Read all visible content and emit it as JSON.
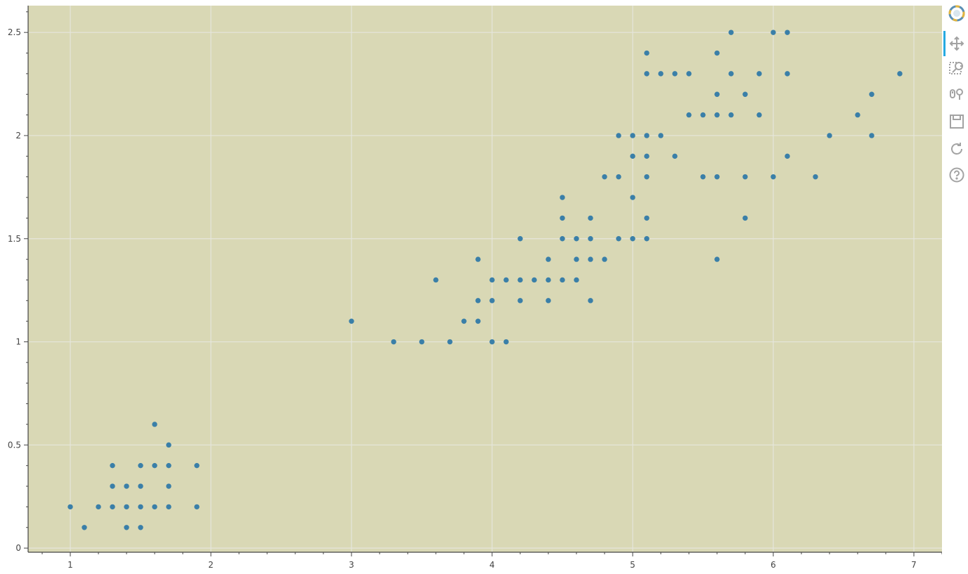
{
  "colors": {
    "plot_background": "#d9d8b5",
    "grid": "#e6e6dc",
    "marker": "#3a7fa8",
    "axis": "#444444",
    "toolbar_icon": "#a3a3a3",
    "active_tool": "#26aae1"
  },
  "toolbar": {
    "tools": [
      {
        "name": "bokeh-logo-icon"
      },
      {
        "name": "pan-tool-icon",
        "active": true
      },
      {
        "name": "box-zoom-tool-icon"
      },
      {
        "name": "wheel-zoom-tool-icon"
      },
      {
        "name": "save-tool-icon"
      },
      {
        "name": "reset-tool-icon"
      },
      {
        "name": "help-tool-icon"
      }
    ]
  },
  "chart_data": {
    "type": "scatter",
    "title": "",
    "xlabel": "",
    "ylabel": "",
    "xlim": [
      0.7,
      7.2
    ],
    "ylim": [
      -0.02,
      2.63
    ],
    "x_ticks": [
      1,
      2,
      3,
      4,
      5,
      6,
      7
    ],
    "y_ticks": [
      0,
      0.5,
      1,
      1.5,
      2,
      2.5
    ],
    "x_tick_labels": [
      "1",
      "2",
      "3",
      "4",
      "5",
      "6",
      "7"
    ],
    "y_tick_labels": [
      "0",
      "0.5",
      "1",
      "1.5",
      "2",
      "2.5"
    ],
    "grid": true,
    "legend": "none",
    "series": [
      {
        "points": [
          [
            1.0,
            0.2
          ],
          [
            1.1,
            0.1
          ],
          [
            1.2,
            0.2
          ],
          [
            1.3,
            0.2
          ],
          [
            1.3,
            0.3
          ],
          [
            1.3,
            0.4
          ],
          [
            1.4,
            0.1
          ],
          [
            1.4,
            0.2
          ],
          [
            1.4,
            0.3
          ],
          [
            1.5,
            0.1
          ],
          [
            1.5,
            0.2
          ],
          [
            1.5,
            0.3
          ],
          [
            1.5,
            0.4
          ],
          [
            1.6,
            0.2
          ],
          [
            1.6,
            0.4
          ],
          [
            1.6,
            0.6
          ],
          [
            1.7,
            0.2
          ],
          [
            1.7,
            0.3
          ],
          [
            1.7,
            0.4
          ],
          [
            1.7,
            0.5
          ],
          [
            1.9,
            0.2
          ],
          [
            1.9,
            0.4
          ],
          [
            3.0,
            1.1
          ],
          [
            3.3,
            1.0
          ],
          [
            3.5,
            1.0
          ],
          [
            3.6,
            1.3
          ],
          [
            3.7,
            1.0
          ],
          [
            3.8,
            1.1
          ],
          [
            3.9,
            1.1
          ],
          [
            3.9,
            1.2
          ],
          [
            3.9,
            1.4
          ],
          [
            4.0,
            1.0
          ],
          [
            4.0,
            1.2
          ],
          [
            4.0,
            1.3
          ],
          [
            4.1,
            1.0
          ],
          [
            4.1,
            1.3
          ],
          [
            4.2,
            1.2
          ],
          [
            4.2,
            1.3
          ],
          [
            4.2,
            1.5
          ],
          [
            4.3,
            1.3
          ],
          [
            4.4,
            1.2
          ],
          [
            4.4,
            1.3
          ],
          [
            4.4,
            1.4
          ],
          [
            4.5,
            1.3
          ],
          [
            4.5,
            1.5
          ],
          [
            4.5,
            1.6
          ],
          [
            4.5,
            1.7
          ],
          [
            4.6,
            1.3
          ],
          [
            4.6,
            1.4
          ],
          [
            4.6,
            1.5
          ],
          [
            4.7,
            1.2
          ],
          [
            4.7,
            1.4
          ],
          [
            4.7,
            1.5
          ],
          [
            4.7,
            1.6
          ],
          [
            4.8,
            1.4
          ],
          [
            4.8,
            1.8
          ],
          [
            4.9,
            1.5
          ],
          [
            4.9,
            1.8
          ],
          [
            4.9,
            2.0
          ],
          [
            5.0,
            1.5
          ],
          [
            5.0,
            1.7
          ],
          [
            5.0,
            1.9
          ],
          [
            5.0,
            2.0
          ],
          [
            5.1,
            1.5
          ],
          [
            5.1,
            1.6
          ],
          [
            5.1,
            1.8
          ],
          [
            5.1,
            1.9
          ],
          [
            5.1,
            2.0
          ],
          [
            5.1,
            2.3
          ],
          [
            5.1,
            2.4
          ],
          [
            5.2,
            2.0
          ],
          [
            5.2,
            2.3
          ],
          [
            5.3,
            1.9
          ],
          [
            5.3,
            2.3
          ],
          [
            5.4,
            2.1
          ],
          [
            5.4,
            2.3
          ],
          [
            5.5,
            1.8
          ],
          [
            5.5,
            2.1
          ],
          [
            5.6,
            1.4
          ],
          [
            5.6,
            1.8
          ],
          [
            5.6,
            2.1
          ],
          [
            5.6,
            2.2
          ],
          [
            5.6,
            2.4
          ],
          [
            5.7,
            2.1
          ],
          [
            5.7,
            2.3
          ],
          [
            5.7,
            2.5
          ],
          [
            5.8,
            1.6
          ],
          [
            5.8,
            1.8
          ],
          [
            5.8,
            2.2
          ],
          [
            5.9,
            2.1
          ],
          [
            5.9,
            2.3
          ],
          [
            6.0,
            1.8
          ],
          [
            6.0,
            2.5
          ],
          [
            6.1,
            1.9
          ],
          [
            6.1,
            2.3
          ],
          [
            6.1,
            2.5
          ],
          [
            6.3,
            1.8
          ],
          [
            6.4,
            2.0
          ],
          [
            6.6,
            2.1
          ],
          [
            6.7,
            2.0
          ],
          [
            6.7,
            2.2
          ],
          [
            6.9,
            2.3
          ]
        ]
      }
    ]
  }
}
